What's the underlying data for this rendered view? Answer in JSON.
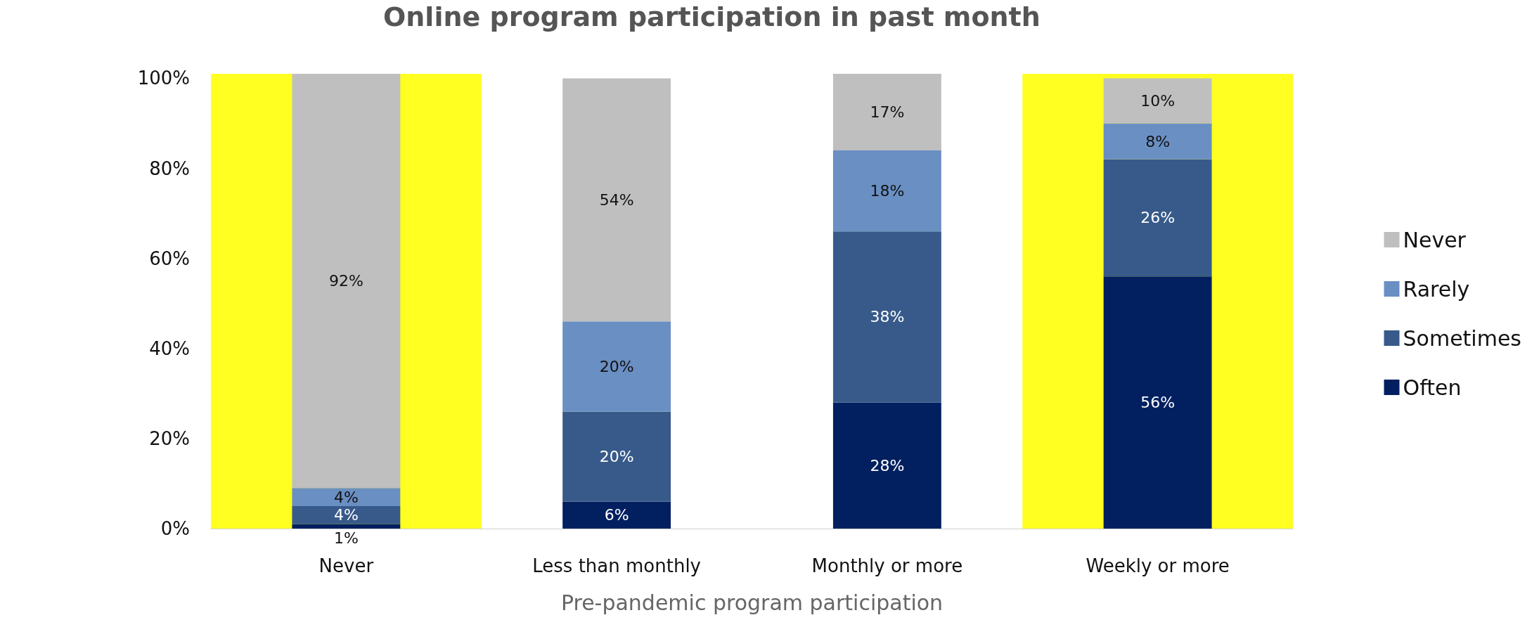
{
  "chart_data": {
    "type": "bar",
    "stacked": true,
    "title": "Online program participation in past month",
    "xlabel": "Pre-pandemic program participation",
    "categories": [
      "Never",
      "Less than monthly",
      "Monthly or more",
      "Weekly or more"
    ],
    "series": [
      {
        "name": "Often",
        "color": "#022060",
        "values": [
          1,
          6,
          28,
          56
        ],
        "value_labels": [
          "1%",
          "6%",
          "28%",
          "56%"
        ]
      },
      {
        "name": "Sometimes",
        "color": "#375a8a",
        "values": [
          4,
          20,
          38,
          26
        ],
        "value_labels": [
          "4%",
          "20%",
          "38%",
          "26%"
        ]
      },
      {
        "name": "Rarely",
        "color": "#6a8fc3",
        "values": [
          4,
          20,
          18,
          8
        ],
        "value_labels": [
          "4%",
          "20%",
          "18%",
          "8%"
        ]
      },
      {
        "name": "Never",
        "color": "#bfbfbf",
        "values": [
          92,
          54,
          17,
          10
        ],
        "value_labels": [
          "92%",
          "54%",
          "17%",
          "10%"
        ]
      }
    ],
    "ylim": [
      0,
      101
    ],
    "yticks": [
      {
        "value": 0,
        "label": "0%"
      },
      {
        "value": 20,
        "label": "20%"
      },
      {
        "value": 40,
        "label": "40%"
      },
      {
        "value": 60,
        "label": "60%"
      },
      {
        "value": 80,
        "label": "80%"
      },
      {
        "value": 100,
        "label": "100%"
      }
    ],
    "bands": [
      {
        "axis": "x",
        "from": "Never",
        "to": "Never",
        "color": "#ffff22"
      },
      {
        "axis": "x",
        "from": "Weekly or more",
        "to": "Weekly or more",
        "color": "#ffff22"
      }
    ],
    "grid": false,
    "legend": "right"
  }
}
